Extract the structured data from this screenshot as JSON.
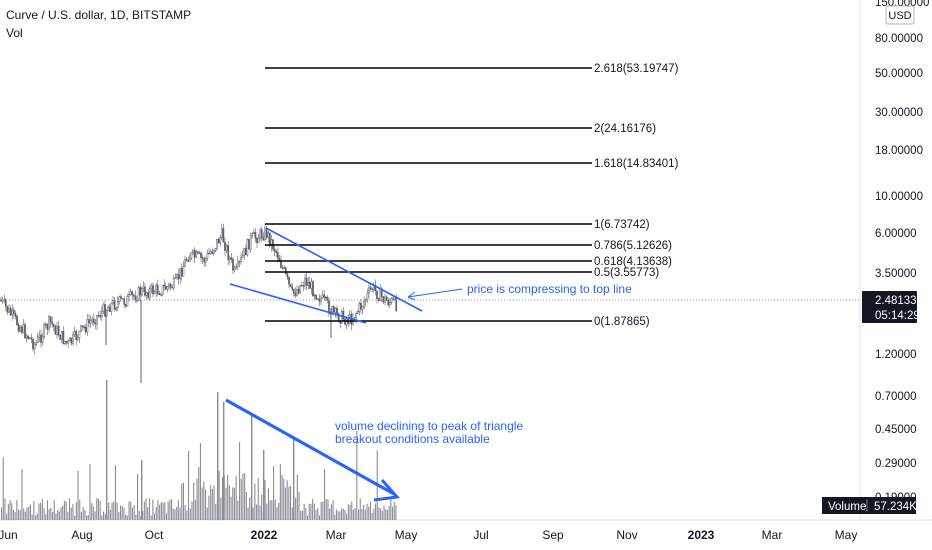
{
  "chart_header": {
    "symbol_line": "Curve / U.S. dollar, 1D, BITSTAMP",
    "indicator": "Vol"
  },
  "currency_button": "USD",
  "price_axis": {
    "ticks": [
      "150.00000",
      "80.00000",
      "50.00000",
      "30.00000",
      "18.00000",
      "10.00000",
      "6.00000",
      "3.50000",
      "1.20000",
      "0.70000",
      "0.45000",
      "0.29000",
      "0.19000"
    ],
    "current_price": "2.48133",
    "countdown": "05:14:29"
  },
  "time_axis": {
    "ticks": [
      "Jun",
      "Aug",
      "Oct",
      "2022",
      "Mar",
      "May",
      "Jul",
      "Sep",
      "Nov",
      "2023",
      "Mar",
      "May"
    ]
  },
  "fib_levels": [
    {
      "label": "2.618(53.19747)"
    },
    {
      "label": "2(24.16176)"
    },
    {
      "label": "1.618(14.83401)"
    },
    {
      "label": "1(6.73742)"
    },
    {
      "label": "0.786(5.12626)"
    },
    {
      "label": "0.618(4.13638)"
    },
    {
      "label": "0.5(3.55773)"
    },
    {
      "label": "0(1.87865)"
    }
  ],
  "annotations": {
    "price_note": "price is compressing to top line",
    "volume_note_line1": "volume declining to peak of triangle",
    "volume_note_line2": "breakout conditions available"
  },
  "volume_readout": {
    "label": "Volume",
    "value": "57.234K"
  },
  "colors": {
    "annotation_blue": "#2962ff",
    "text": "#131722",
    "candle_dark": "#5d606b",
    "volume_bar": "#8a8d96"
  }
}
